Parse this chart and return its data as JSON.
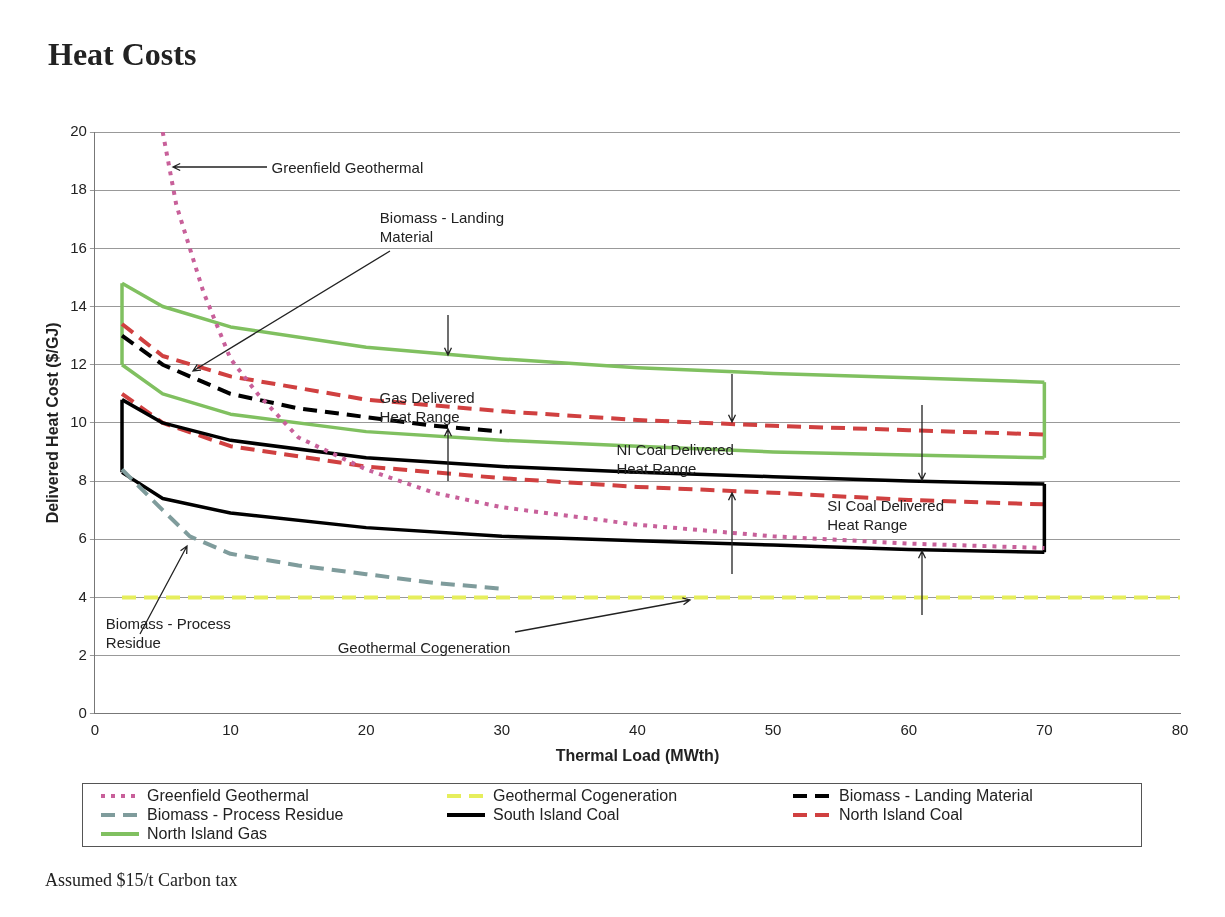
{
  "chart_data": {
    "type": "line",
    "title": "Heat Costs",
    "xlabel": "Thermal Load (MWth)",
    "ylabel": "Delivered Heat Cost ($/GJ)",
    "xlim": [
      0,
      80
    ],
    "xticks": [
      0,
      10,
      20,
      30,
      40,
      50,
      60,
      70,
      80
    ],
    "ylim": [
      0,
      20
    ],
    "yticks": [
      0,
      2,
      4,
      6,
      8,
      10,
      12,
      14,
      16,
      18,
      20
    ],
    "grid": "y",
    "legend": "bottom",
    "marker": "none",
    "series": [
      {
        "name": "Greenfield Geothermal",
        "color": "#c8609a",
        "line_style": "dotted",
        "x": [
          5,
          6,
          8,
          10,
          12,
          15,
          20,
          25,
          30,
          40,
          50,
          60,
          70
        ],
        "values": [
          20,
          17.5,
          14.5,
          12.2,
          11,
          9.5,
          8.4,
          7.6,
          7.1,
          6.5,
          6.1,
          5.85,
          5.7
        ]
      },
      {
        "name": "Geothermal Cogeneration",
        "color": "#e6ee5c",
        "line_style": "dashed",
        "x": [
          2,
          80
        ],
        "values": [
          4,
          4
        ]
      },
      {
        "name": "Biomass - Landing Material",
        "color": "#000000",
        "line_style": "dashed",
        "x": [
          2,
          5,
          10,
          15,
          20,
          25,
          30
        ],
        "values": [
          13,
          12,
          11,
          10.5,
          10.2,
          9.9,
          9.7
        ]
      },
      {
        "name": "Biomass - Process Residue",
        "color": "#7f9c9c",
        "line_style": "dashed",
        "x": [
          2,
          5,
          7,
          10,
          15,
          20,
          25,
          30
        ],
        "values": [
          8.4,
          7,
          6.1,
          5.5,
          5.1,
          4.8,
          4.5,
          4.3
        ]
      },
      {
        "name": "South Island Coal",
        "color": "#000000",
        "line_style": "solid",
        "x": [
          2,
          5,
          10,
          20,
          30,
          40,
          50,
          60,
          70
        ],
        "values": [
          10.8,
          10,
          9.4,
          8.8,
          8.5,
          8.3,
          8.15,
          8,
          7.9
        ]
      },
      {
        "name": "North Island Coal",
        "color": "#d04040",
        "line_style": "dashed",
        "x": [
          2,
          5,
          10,
          20,
          30,
          40,
          50,
          60,
          70
        ],
        "values": [
          13.4,
          12.3,
          11.6,
          10.8,
          10.4,
          10.1,
          9.9,
          9.75,
          9.6
        ]
      },
      {
        "name": "North Island Gas",
        "color": "#80c060",
        "line_style": "solid",
        "x": [
          2,
          5,
          10,
          20,
          30,
          40,
          50,
          60,
          70
        ],
        "values": [
          14.8,
          14,
          13.3,
          12.6,
          12.2,
          11.9,
          11.7,
          11.55,
          11.4
        ]
      },
      {
        "color": "#000000",
        "line_style": "solid",
        "x": [
          2,
          5,
          10,
          20,
          30,
          40,
          50,
          60,
          70
        ],
        "values": [
          8.3,
          7.4,
          6.9,
          6.4,
          6.1,
          5.95,
          5.8,
          5.65,
          5.55
        ]
      },
      {
        "color": "#000000",
        "line_style": "solid",
        "x": [
          2,
          2
        ],
        "values": [
          8.3,
          10.8
        ]
      },
      {
        "color": "#000000",
        "line_style": "solid",
        "x": [
          70,
          70
        ],
        "values": [
          5.55,
          7.9
        ]
      },
      {
        "color": "#d04040",
        "line_style": "dashed",
        "x": [
          2,
          5,
          10,
          20,
          30,
          40,
          50,
          60,
          70
        ],
        "values": [
          11,
          10,
          9.2,
          8.5,
          8.1,
          7.8,
          7.6,
          7.35,
          7.2
        ]
      },
      {
        "color": "#80c060",
        "line_style": "solid",
        "x": [
          2,
          5,
          10,
          20,
          30,
          40,
          50,
          60,
          70
        ],
        "values": [
          12,
          11,
          10.3,
          9.7,
          9.4,
          9.2,
          9,
          8.9,
          8.8
        ]
      },
      {
        "color": "#80c060",
        "line_style": "solid",
        "x": [
          2,
          2
        ],
        "values": [
          12,
          14.8
        ]
      },
      {
        "color": "#80c060",
        "line_style": "solid",
        "x": [
          70,
          70
        ],
        "values": [
          8.8,
          11.4
        ]
      }
    ],
    "annotations": [
      {
        "text": "Greenfield Geothermal",
        "x": 5.5,
        "y": 18.8
      },
      {
        "text": "Biomass - Landing Material",
        "x": 7,
        "y": 11.7
      },
      {
        "text": "Gas Delivered Heat Range",
        "x": 26,
        "y": 12.3
      },
      {
        "text": "NI Coal Delivered Heat Range",
        "x": 47,
        "y": 10
      },
      {
        "text": "SI Coal Delivered Heat Range",
        "x": 61,
        "y": 8
      },
      {
        "text": "Biomass - Process Residue",
        "x": 7,
        "y": 5.9
      },
      {
        "text": "Geothermal Cogeneration",
        "x": 44,
        "y": 4
      },
      "Assumed $15/t Carbon tax"
    ]
  }
}
